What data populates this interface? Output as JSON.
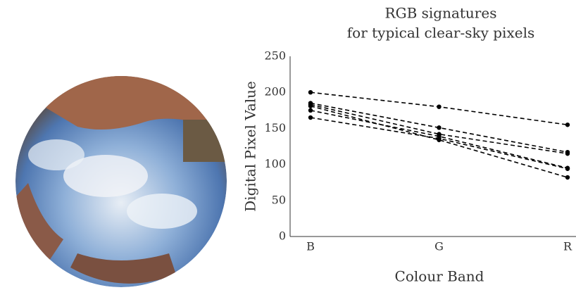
{
  "chart_data": {
    "type": "line",
    "title": [
      "RGB signatures",
      "for typical clear-sky pixels"
    ],
    "x_label": "Colour Band",
    "y_label": "Digital Pixel Value",
    "categories": [
      "B",
      "G",
      "R"
    ],
    "series": [
      {
        "color": "#000000",
        "values": [
          200,
          180,
          155
        ]
      },
      {
        "color": "#000000",
        "values": [
          185,
          151,
          117
        ]
      },
      {
        "color": "#000000",
        "values": [
          183,
          142,
          115
        ]
      },
      {
        "color": "#000000",
        "values": [
          181,
          134,
          82
        ]
      },
      {
        "color": "#000000",
        "values": [
          175,
          139,
          95
        ]
      },
      {
        "color": "#000000",
        "values": [
          165,
          136,
          94
        ]
      }
    ],
    "ylim": [
      0,
      250
    ],
    "yticks": [
      0,
      50,
      100,
      150,
      200,
      250
    ],
    "grid": false,
    "line_style": "dashed"
  }
}
